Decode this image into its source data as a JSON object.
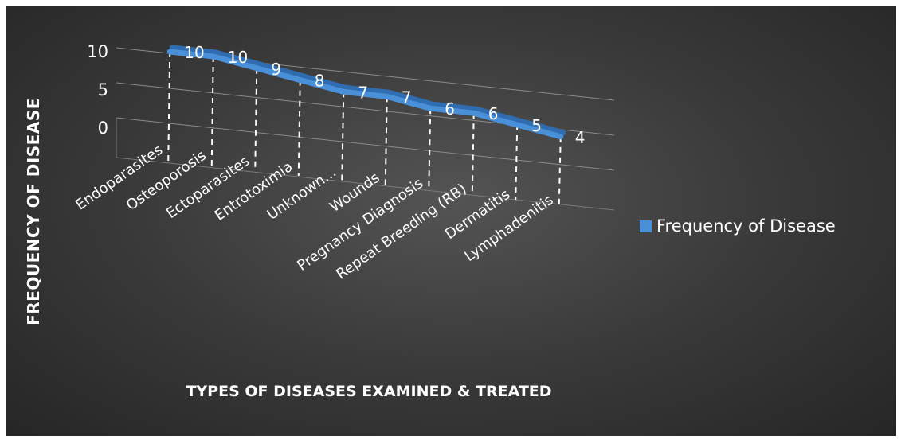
{
  "chart_data": {
    "type": "line",
    "title": "",
    "xlabel": "TYPES OF DISEASES EXAMINED & TREATED",
    "ylabel": "FREQUENCY OF DISEASE",
    "categories": [
      "Endoparasites",
      "Osteoporosis",
      "Ectoparasites",
      "Entrotoximia",
      "Unknown...",
      "Wounds",
      "Pregnancy Diagnosis",
      "Repeat Breeding (RB)",
      "Dermatitis",
      "Lymphadenitis"
    ],
    "series": [
      {
        "name": "Frequency of Disease",
        "values": [
          10,
          10,
          9,
          8,
          7,
          7,
          6,
          6,
          5,
          4
        ],
        "color": "#4a90d9"
      }
    ],
    "yticks": [
      "0",
      "5",
      "10"
    ],
    "ylim": [
      0,
      10
    ],
    "grid": true,
    "legend_position": "right",
    "style": "3d-line"
  }
}
